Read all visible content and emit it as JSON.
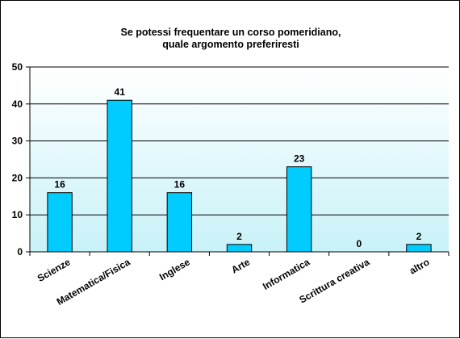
{
  "chart_data": {
    "type": "bar",
    "title": [
      "Se potessi  frequentare un corso  pomeridiano,",
      "quale argomento preferiresti"
    ],
    "categories": [
      "Scienze",
      "Matematica/Fisica",
      "Inglese",
      "Arte",
      "Informatica",
      "Scrittura creativa",
      "altro"
    ],
    "values": [
      16,
      41,
      16,
      2,
      23,
      0,
      2
    ],
    "data_labels": [
      "16",
      "41",
      "16",
      "2",
      "23",
      "0",
      "2"
    ],
    "ylim": [
      0,
      50
    ],
    "yticks": [
      "0",
      "10",
      "20",
      "30",
      "40",
      "50"
    ],
    "xlabel": "",
    "ylabel": "",
    "grid": true,
    "legend": "none",
    "colors": {
      "bar_fill": "#00ccff",
      "bar_stroke": "#000000",
      "plot_bg_top": "#ffffff",
      "plot_bg_bottom": "#c8f2f8",
      "gridline": "#000000"
    }
  }
}
